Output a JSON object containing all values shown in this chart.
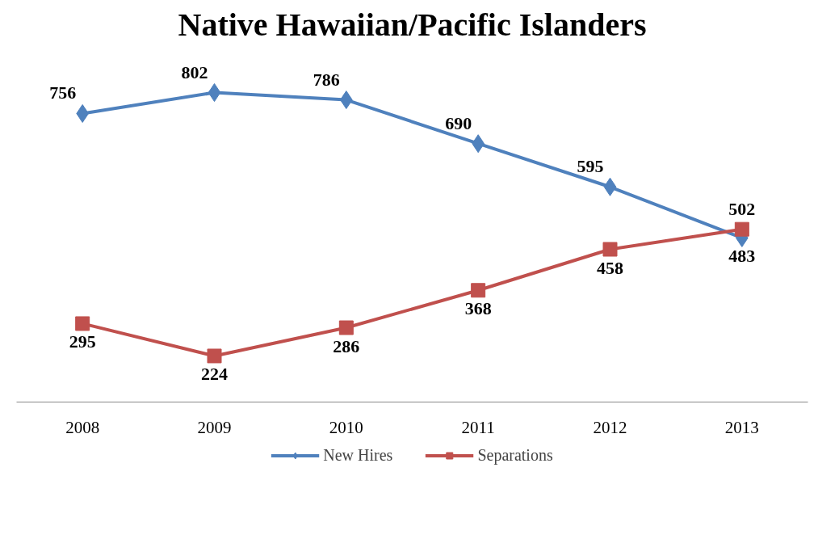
{
  "chart_data": {
    "type": "line",
    "title": "Native Hawaiian/Pacific Islanders",
    "categories": [
      "2008",
      "2009",
      "2010",
      "2011",
      "2012",
      "2013"
    ],
    "series": [
      {
        "name": "New Hires",
        "color": "#4f81bd",
        "marker": "diamond",
        "values": [
          756,
          802,
          786,
          690,
          595,
          483
        ]
      },
      {
        "name": "Separations",
        "color": "#c0504d",
        "marker": "square",
        "values": [
          295,
          224,
          286,
          368,
          458,
          502
        ]
      }
    ],
    "tick_labels": "x",
    "grid": false,
    "legend": "bottom",
    "data_labels": true,
    "line_style": "solid"
  }
}
